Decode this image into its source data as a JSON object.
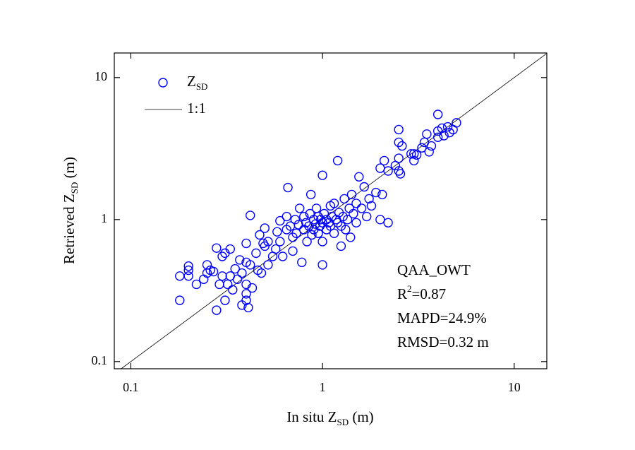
{
  "chart_data": {
    "type": "scatter",
    "xlabel": {
      "text": "In situ Z",
      "sub": "SD",
      "unit": " (m)"
    },
    "ylabel": {
      "text": "Retrieved Z",
      "sub": "SD",
      "unit": " (m)"
    },
    "log_x": true,
    "log_y": true,
    "xlim": [
      0.082,
      14.8
    ],
    "ylim": [
      0.089,
      14.9
    ],
    "xticks": [
      0.1,
      1,
      10
    ],
    "yticks": [
      0.1,
      1,
      10
    ],
    "legend": "upper left",
    "reference_line": {
      "name": "1:1",
      "color": "#000000"
    },
    "annotations": {
      "method": "QAA_OWT",
      "r2": {
        "text": "R",
        "sup": "2",
        "value": "=0.87"
      },
      "mapd": "MAPD=24.9%",
      "rmsd": "RMSD=0.32 m"
    },
    "series": [
      {
        "name": "Z",
        "name_sub": "SD",
        "color": "#0000ff",
        "x": [
          0.18,
          0.18,
          0.2,
          0.2,
          0.2,
          0.22,
          0.24,
          0.25,
          0.25,
          0.26,
          0.27,
          0.28,
          0.28,
          0.29,
          0.3,
          0.3,
          0.31,
          0.31,
          0.32,
          0.33,
          0.33,
          0.34,
          0.35,
          0.36,
          0.37,
          0.38,
          0.38,
          0.4,
          0.4,
          0.4,
          0.4,
          0.4,
          0.41,
          0.42,
          0.42,
          0.43,
          0.45,
          0.46,
          0.47,
          0.48,
          0.49,
          0.5,
          0.5,
          0.52,
          0.52,
          0.55,
          0.57,
          0.58,
          0.6,
          0.6,
          0.62,
          0.65,
          0.65,
          0.66,
          0.68,
          0.7,
          0.7,
          0.72,
          0.73,
          0.75,
          0.76,
          0.78,
          0.8,
          0.8,
          0.82,
          0.83,
          0.85,
          0.86,
          0.87,
          0.88,
          0.9,
          0.9,
          0.92,
          0.93,
          0.95,
          0.95,
          0.97,
          0.98,
          1.0,
          1.0,
          1.0,
          1.0,
          1.02,
          1.05,
          1.05,
          1.08,
          1.1,
          1.1,
          1.12,
          1.15,
          1.15,
          1.18,
          1.2,
          1.2,
          1.22,
          1.25,
          1.25,
          1.28,
          1.3,
          1.32,
          1.35,
          1.38,
          1.4,
          1.42,
          1.45,
          1.5,
          1.5,
          1.55,
          1.6,
          1.65,
          1.7,
          1.75,
          1.8,
          1.9,
          2.0,
          2.0,
          2.05,
          2.1,
          2.2,
          2.2,
          2.4,
          2.5,
          2.5,
          2.5,
          2.5,
          2.55,
          2.6,
          2.9,
          3.0,
          3.1,
          3.4,
          3.5,
          3.6,
          3.7,
          4.0,
          4.0,
          4.0,
          4.2,
          4.3,
          4.5,
          4.6,
          4.8,
          5.0,
          3.0,
          3.3
        ],
        "values": [
          0.4,
          0.27,
          0.47,
          0.44,
          0.4,
          0.35,
          0.38,
          0.48,
          0.42,
          0.44,
          0.43,
          0.63,
          0.23,
          0.35,
          0.55,
          0.4,
          0.58,
          0.27,
          0.35,
          0.4,
          0.62,
          0.32,
          0.45,
          0.38,
          0.52,
          0.25,
          0.42,
          0.68,
          0.5,
          0.35,
          0.3,
          0.27,
          0.24,
          1.07,
          0.48,
          0.33,
          0.58,
          0.44,
          0.78,
          0.42,
          0.68,
          0.87,
          0.65,
          0.7,
          0.48,
          0.55,
          0.62,
          0.82,
          0.98,
          0.7,
          0.55,
          0.85,
          1.05,
          1.68,
          0.9,
          0.6,
          0.75,
          1.0,
          0.8,
          0.92,
          1.2,
          0.5,
          0.85,
          1.05,
          0.95,
          0.7,
          0.9,
          1.1,
          1.5,
          0.78,
          1.0,
          0.85,
          0.93,
          1.2,
          0.8,
          1.05,
          0.9,
          1.0,
          2.05,
          0.95,
          0.48,
          0.7,
          1.1,
          0.85,
          1.0,
          0.95,
          1.25,
          0.9,
          1.05,
          0.8,
          1.3,
          1.0,
          2.6,
          0.95,
          1.12,
          0.65,
          0.9,
          1.05,
          1.4,
          0.85,
          1.0,
          1.2,
          0.75,
          1.5,
          1.1,
          0.95,
          1.3,
          2.0,
          1.2,
          1.7,
          1.05,
          1.4,
          1.25,
          1.55,
          1.0,
          2.3,
          1.5,
          2.6,
          0.95,
          2.2,
          2.4,
          2.7,
          4.3,
          3.5,
          2.2,
          2.1,
          3.3,
          2.9,
          2.6,
          2.85,
          3.5,
          4.0,
          3.0,
          3.3,
          5.5,
          4.2,
          3.8,
          4.4,
          3.9,
          4.5,
          4.1,
          4.3,
          4.8,
          2.9,
          3.2
        ]
      }
    ]
  }
}
